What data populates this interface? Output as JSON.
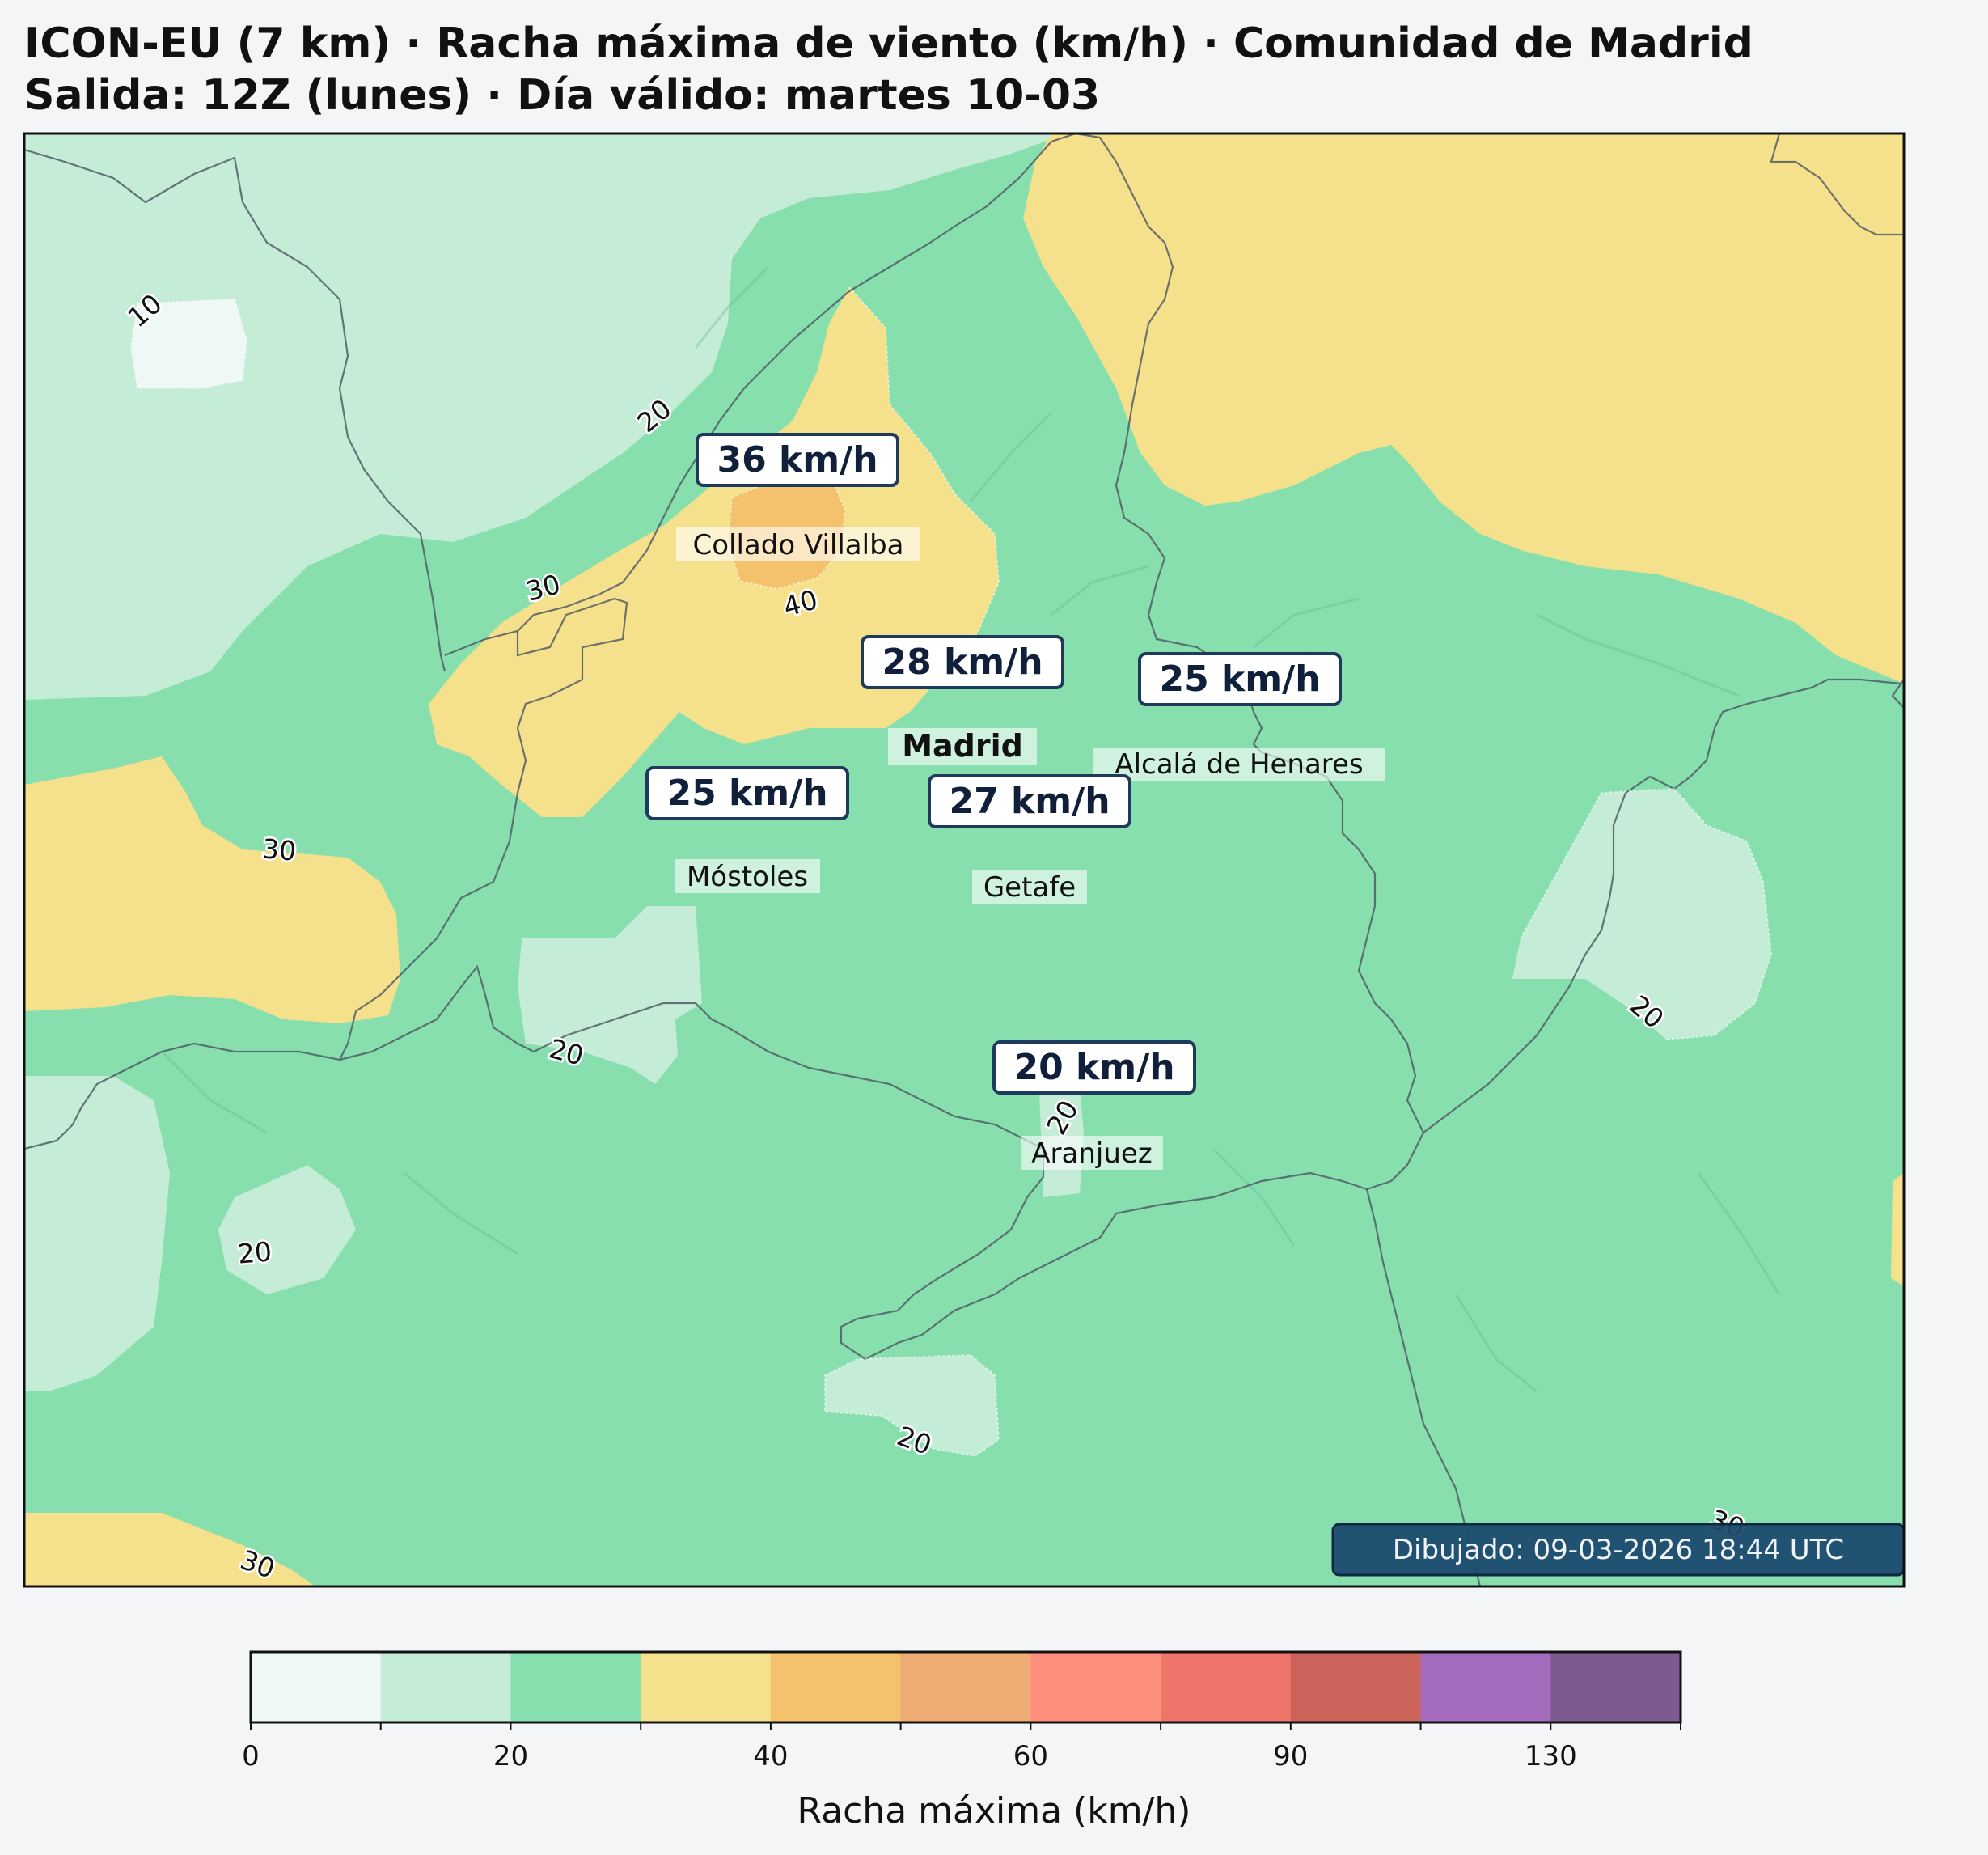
{
  "header": {
    "line1": "ICON-EU (7 km) · Racha máxima de viento (km/h) · Comunidad de Madrid",
    "line2": "Salida: 12Z (lunes) · Día válido: martes 10-03"
  },
  "map": {
    "cities": [
      {
        "name": "Collado Villalba",
        "gust": "36 km/h"
      },
      {
        "name": "Madrid",
        "gust": "28 km/h",
        "capital": true
      },
      {
        "name": "Alcalá de Henares",
        "gust": "25 km/h"
      },
      {
        "name": "Móstoles",
        "gust": "25 km/h"
      },
      {
        "name": "Getafe",
        "gust": "27 km/h"
      },
      {
        "name": "Aranjuez",
        "gust": "20 km/h"
      }
    ],
    "contour_labels": [
      "10",
      "20",
      "30",
      "40"
    ],
    "timestamp": "Dibujado: 09-03-2026 18:44 UTC"
  },
  "colorbar": {
    "label": "Racha máxima (km/h)",
    "tick_labels": [
      "0",
      "20",
      "40",
      "60",
      "90",
      "130"
    ],
    "bins": [
      {
        "from": 0,
        "to": 10,
        "color": "#eef8f5"
      },
      {
        "from": 10,
        "to": 20,
        "color": "#c4ecd6"
      },
      {
        "from": 20,
        "to": 30,
        "color": "#88dfae"
      },
      {
        "from": 30,
        "to": 40,
        "color": "#f5e08c"
      },
      {
        "from": 40,
        "to": 50,
        "color": "#f4c26d"
      },
      {
        "from": 50,
        "to": 60,
        "color": "#eeac73"
      },
      {
        "from": 60,
        "to": 75,
        "color": "#fd8f7c"
      },
      {
        "from": 75,
        "to": 90,
        "color": "#ed7569"
      },
      {
        "from": 90,
        "to": 110,
        "color": "#cb635a"
      },
      {
        "from": 110,
        "to": 130,
        "color": "#a56cbe"
      },
      {
        "from": 130,
        "to": 150,
        "color": "#7d5a8f"
      }
    ]
  },
  "colors": {
    "label_box_border": "#1f3a5f",
    "label_text": "#10203a",
    "timestamp_bg": "#1c4a6e"
  }
}
